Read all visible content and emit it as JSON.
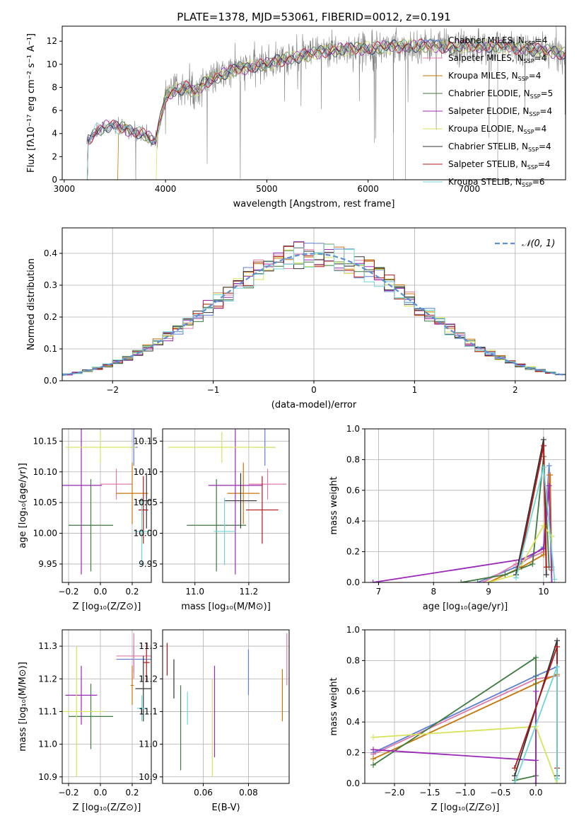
{
  "chart_data": [
    {
      "type": "line",
      "title": "PLATE=1378, MJD=53061, FIBERID=0012, z=0.191",
      "xlabel": "wavelength [Angstrom, rest frame]",
      "ylabel": "Flux [fλ10⁻¹⁷ erg cm⁻² s⁻¹ A⁻¹]",
      "xlim": [
        2980,
        7950
      ],
      "ylim": [
        0,
        13.3
      ],
      "xticks": [
        "3000",
        "4000",
        "5000",
        "6000",
        "7000"
      ],
      "yticks": [
        "0",
        "2",
        "4",
        "6",
        "8",
        "10",
        "12"
      ],
      "legend_position": "top-right",
      "series": [
        {
          "name": "Chabrier MILES, N",
          "sub": "SSP",
          "suffix": "=4",
          "color": "#5b7fd6"
        },
        {
          "name": "Salpeter MILES, N",
          "sub": "SSP",
          "suffix": "=4",
          "color": "#e07ba8"
        },
        {
          "name": "Kroupa MILES, N",
          "sub": "SSP",
          "suffix": "=4",
          "color": "#c8750a"
        },
        {
          "name": "Chabrier ELODIE, N",
          "sub": "SSP",
          "suffix": "=5",
          "color": "#3f7a3f"
        },
        {
          "name": "Salpeter ELODIE, N",
          "sub": "SSP",
          "suffix": "=4",
          "color": "#9b28b8"
        },
        {
          "name": "Kroupa ELODIE, N",
          "sub": "SSP",
          "suffix": "=4",
          "color": "#d7e35a"
        },
        {
          "name": "Chabrier STELIB, N",
          "sub": "SSP",
          "suffix": "=4",
          "color": "#333333"
        },
        {
          "name": "Salpeter STELIB, N",
          "sub": "SSP",
          "suffix": "=4",
          "color": "#b01818"
        },
        {
          "name": "Kroupa STELIB, N",
          "sub": "SSP",
          "suffix": "=6",
          "color": "#6fd6d6"
        }
      ],
      "data_color": "#808080",
      "continuum": {
        "x": [
          3220,
          3300,
          3400,
          3500,
          3600,
          3700,
          3800,
          3900,
          3950,
          4000,
          4100,
          4200,
          4300,
          4400,
          4500,
          4600,
          4700,
          4800,
          4900,
          5000,
          5200,
          5400,
          5600,
          5800,
          6000,
          6200,
          6400,
          6600,
          6800,
          7000,
          7200,
          7400,
          7600,
          7800,
          7950
        ],
        "y": [
          3.2,
          4.2,
          4.6,
          4.6,
          4.4,
          4.2,
          3.9,
          3.2,
          5.2,
          7.2,
          7.8,
          8.0,
          7.6,
          8.5,
          8.9,
          9.2,
          9.6,
          9.7,
          9.9,
          10.0,
          10.5,
          10.8,
          11.2,
          11.3,
          11.4,
          11.5,
          11.6,
          11.6,
          11.5,
          11.6,
          11.6,
          11.5,
          11.3,
          11.1,
          10.9
        ]
      }
    },
    {
      "type": "histogram",
      "xlabel": "(data-model)/error",
      "ylabel": "Normed distribution",
      "xlim": [
        -2.5,
        2.5
      ],
      "ylim": [
        0,
        0.48
      ],
      "xticks": [
        "−2",
        "−1",
        "0",
        "1",
        "2"
      ],
      "yticks": [
        "0.0",
        "0.1",
        "0.2",
        "0.3",
        "0.4"
      ],
      "legend_label": "𝒩(0, 1)",
      "legend_position": "top-right",
      "gauss_color": "#5b8fd6",
      "bin_width": 0.1
    },
    {
      "type": "scatter",
      "xlabel": "Z [log₁₀(Z/Z⊙)]",
      "ylabel": "age  [log₁₀(age/yr)]",
      "xlim": [
        -0.24,
        0.32
      ],
      "ylim": [
        9.92,
        10.17
      ],
      "xticks": [
        "−0.2",
        "0.0",
        "0.2"
      ],
      "yticks": [
        "9.95",
        "10.00",
        "10.05",
        "10.10",
        "10.15"
      ],
      "points": [
        {
          "x": 0.21,
          "y": 10.14,
          "xerr": 0.025,
          "yerr": 0.03,
          "color": "#5b7fd6"
        },
        {
          "x": 0.1,
          "y": 10.08,
          "xerr": 0.1,
          "yerr": 0.025,
          "color": "#e07ba8"
        },
        {
          "x": 0.2,
          "y": 10.065,
          "xerr": 0.1,
          "yerr": 0.05,
          "color": "#c8750a"
        },
        {
          "x": -0.06,
          "y": 10.013,
          "xerr": 0.14,
          "yerr": 0.075,
          "color": "#3f7a3f"
        },
        {
          "x": -0.12,
          "y": 10.078,
          "xerr": 0.13,
          "yerr": 0.145,
          "color": "#9b28b8"
        },
        {
          "x": 0.0,
          "y": 10.14,
          "xerr": 0.22,
          "yerr": 0.025,
          "color": "#d7e35a"
        },
        {
          "x": 0.29,
          "y": 10.053,
          "xerr": 0.05,
          "yerr": 0.045,
          "color": "#333333"
        },
        {
          "x": 0.27,
          "y": 10.038,
          "xerr": 0.03,
          "yerr": 0.055,
          "color": "#b01818"
        },
        {
          "x": 0.26,
          "y": 10.003,
          "xerr": 0.05,
          "yerr": 0.055,
          "color": "#6fd6d6"
        }
      ]
    },
    {
      "type": "scatter",
      "xlabel": "mass [log₁₀(M/M⊙)]",
      "ylabel": "",
      "xlim": [
        10.88,
        11.35
      ],
      "ylim": [
        9.92,
        10.17
      ],
      "xticks": [
        "11.0",
        "11.2"
      ],
      "yticks": [
        "9.95",
        "10.00",
        "10.05",
        "10.10",
        "10.15"
      ],
      "points": [
        {
          "x": 11.26,
          "y": 10.14,
          "xerr": 0.04,
          "yerr": 0.03,
          "color": "#5b7fd6"
        },
        {
          "x": 11.27,
          "y": 10.08,
          "xerr": 0.07,
          "yerr": 0.025,
          "color": "#e07ba8"
        },
        {
          "x": 11.18,
          "y": 10.065,
          "xerr": 0.06,
          "yerr": 0.05,
          "color": "#c8750a"
        },
        {
          "x": 11.08,
          "y": 10.013,
          "xerr": 0.11,
          "yerr": 0.075,
          "color": "#3f7a3f"
        },
        {
          "x": 11.15,
          "y": 10.078,
          "xerr": 0.1,
          "yerr": 0.145,
          "color": "#9b28b8"
        },
        {
          "x": 11.1,
          "y": 10.14,
          "xerr": 0.2,
          "yerr": 0.025,
          "color": "#d7e35a"
        },
        {
          "x": 11.17,
          "y": 10.053,
          "xerr": 0.06,
          "yerr": 0.045,
          "color": "#333333"
        },
        {
          "x": 11.25,
          "y": 10.038,
          "xerr": 0.06,
          "yerr": 0.055,
          "color": "#b01818"
        },
        {
          "x": 11.11,
          "y": 10.003,
          "xerr": 0.04,
          "yerr": 0.055,
          "color": "#6fd6d6"
        }
      ]
    },
    {
      "type": "line",
      "xlabel": "age  [log₁₀(age/yr)]",
      "ylabel": "mass weight",
      "xlim": [
        6.75,
        10.4
      ],
      "ylim": [
        0,
        1.0
      ],
      "xticks": [
        "7",
        "8",
        "9",
        "10"
      ],
      "yticks": [
        "0.0",
        "0.2",
        "0.4",
        "0.6",
        "0.8",
        "1.0"
      ],
      "series": [
        {
          "color": "#5b7fd6",
          "points": [
            [
              8.8,
              0.0
            ],
            [
              9.5,
              0.1
            ],
            [
              10.0,
              0.23
            ],
            [
              10.1,
              0.76
            ],
            [
              10.15,
              0.1
            ]
          ]
        },
        {
          "color": "#e07ba8",
          "points": [
            [
              8.9,
              0.0
            ],
            [
              9.5,
              0.12
            ],
            [
              10.0,
              0.2
            ],
            [
              10.1,
              0.7
            ],
            [
              10.15,
              0.1
            ]
          ]
        },
        {
          "color": "#c8750a",
          "points": [
            [
              9.0,
              0.0
            ],
            [
              9.6,
              0.1
            ],
            [
              10.0,
              0.18
            ],
            [
              10.12,
              0.7
            ],
            [
              10.15,
              0.08
            ]
          ]
        },
        {
          "color": "#3f7a3f",
          "points": [
            [
              8.5,
              0.0
            ],
            [
              9.3,
              0.05
            ],
            [
              9.8,
              0.12
            ],
            [
              10.0,
              0.82
            ],
            [
              10.1,
              0.1
            ]
          ]
        },
        {
          "color": "#9b28b8",
          "points": [
            [
              6.9,
              0.0
            ],
            [
              9.6,
              0.15
            ],
            [
              10.0,
              0.22
            ],
            [
              10.1,
              0.63
            ],
            [
              10.15,
              0.0
            ]
          ]
        },
        {
          "color": "#d7e35a",
          "points": [
            [
              9.0,
              0.0
            ],
            [
              9.5,
              0.05
            ],
            [
              10.0,
              0.37
            ],
            [
              10.15,
              0.3
            ]
          ]
        },
        {
          "color": "#333333",
          "points": [
            [
              9.5,
              0.05
            ],
            [
              10.0,
              0.93
            ],
            [
              10.05,
              0.05
            ]
          ]
        },
        {
          "color": "#b01818",
          "points": [
            [
              9.55,
              0.1
            ],
            [
              10.0,
              0.89
            ],
            [
              10.05,
              0.1
            ]
          ]
        },
        {
          "color": "#6fd6d6",
          "points": [
            [
              9.5,
              0.03
            ],
            [
              10.0,
              0.75
            ],
            [
              10.2,
              0.02
            ]
          ]
        }
      ]
    },
    {
      "type": "scatter",
      "xlabel": "Z [log₁₀(Z/Z⊙)]",
      "ylabel": "mass [log₁₀(M/M⊙)]",
      "xlim": [
        -0.24,
        0.32
      ],
      "ylim": [
        10.88,
        11.35
      ],
      "xticks": [
        "−0.2",
        "0.0",
        "0.2"
      ],
      "yticks": [
        "10.9",
        "11.0",
        "11.1",
        "11.2",
        "11.3"
      ],
      "points": [
        {
          "x": 0.21,
          "y": 11.26,
          "xerr": 0.11,
          "yerr": 0.04,
          "color": "#5b7fd6"
        },
        {
          "x": 0.21,
          "y": 11.27,
          "xerr": 0.11,
          "yerr": 0.07,
          "color": "#e07ba8"
        },
        {
          "x": 0.2,
          "y": 11.18,
          "xerr": 0.01,
          "yerr": 0.06,
          "color": "#c8750a"
        },
        {
          "x": -0.06,
          "y": 11.085,
          "xerr": 0.14,
          "yerr": 0.1,
          "color": "#3f7a3f"
        },
        {
          "x": -0.12,
          "y": 11.15,
          "xerr": 0.1,
          "yerr": 0.09,
          "color": "#9b28b8"
        },
        {
          "x": -0.15,
          "y": 11.1,
          "xerr": 0.17,
          "yerr": 0.2,
          "color": "#d7e35a"
        },
        {
          "x": 0.27,
          "y": 11.17,
          "xerr": 0.05,
          "yerr": 0.1,
          "color": "#333333"
        },
        {
          "x": 0.29,
          "y": 11.25,
          "xerr": 0.02,
          "yerr": 0.06,
          "color": "#b01818"
        },
        {
          "x": 0.26,
          "y": 11.11,
          "xerr": 0.03,
          "yerr": 0.04,
          "color": "#6fd6d6"
        }
      ]
    },
    {
      "type": "scatter",
      "xlabel": "E(B-V)",
      "ylabel": "",
      "xlim": [
        0.042,
        0.098
      ],
      "ylim": [
        10.88,
        11.35
      ],
      "xticks": [
        "0.06",
        "0.08"
      ],
      "yticks": [
        "10.9",
        "11.0",
        "11.1",
        "11.2",
        "11.3"
      ],
      "points": [
        {
          "x": 0.08,
          "y": 11.22,
          "yerr": 0.07,
          "color": "#5b7fd6"
        },
        {
          "x": 0.097,
          "y": 11.26,
          "yerr": 0.08,
          "color": "#e07ba8"
        },
        {
          "x": 0.095,
          "y": 11.15,
          "yerr": 0.08,
          "color": "#c8750a"
        },
        {
          "x": 0.05,
          "y": 11.05,
          "yerr": 0.13,
          "color": "#3f7a3f"
        },
        {
          "x": 0.065,
          "y": 11.1,
          "yerr": 0.14,
          "color": "#9b28b8"
        },
        {
          "x": 0.064,
          "y": 11.05,
          "yerr": 0.15,
          "color": "#d7e35a"
        },
        {
          "x": 0.047,
          "y": 11.2,
          "yerr": 0.06,
          "color": "#333333"
        },
        {
          "x": 0.044,
          "y": 11.26,
          "yerr": 0.05,
          "color": "#b01818"
        },
        {
          "x": 0.053,
          "y": 11.11,
          "yerr": 0.05,
          "color": "#6fd6d6"
        }
      ]
    },
    {
      "type": "line",
      "xlabel": "Z [log₁₀(Z/Z⊙)]",
      "ylabel": "mass weight",
      "xlim": [
        -2.42,
        0.42
      ],
      "ylim": [
        0,
        1.0
      ],
      "xticks": [
        "−2.0",
        "−1.5",
        "−1.0",
        "−0.5",
        "0.0"
      ],
      "yticks": [
        "0.0",
        "0.2",
        "0.4",
        "0.6",
        "0.8",
        "1.0"
      ],
      "series": [
        {
          "color": "#5b7fd6",
          "points": [
            [
              -2.3,
              0.2
            ],
            [
              0.0,
              0.7
            ],
            [
              0.3,
              0.76
            ]
          ]
        },
        {
          "color": "#e07ba8",
          "points": [
            [
              -2.3,
              0.19
            ],
            [
              0.0,
              0.68
            ],
            [
              0.3,
              0.7
            ]
          ]
        },
        {
          "color": "#c8750a",
          "points": [
            [
              -2.3,
              0.16
            ],
            [
              0.0,
              0.65
            ],
            [
              0.3,
              0.71
            ]
          ]
        },
        {
          "color": "#3f7a3f",
          "points": [
            [
              -2.3,
              0.12
            ],
            [
              0.0,
              0.82
            ],
            [
              0.0,
              0.05
            ],
            [
              -0.3,
              0.02
            ]
          ]
        },
        {
          "color": "#9b28b8",
          "points": [
            [
              -2.3,
              0.22
            ],
            [
              0.0,
              0.15
            ],
            [
              0.0,
              0.6
            ],
            [
              0.0,
              0.0
            ]
          ]
        },
        {
          "color": "#d7e35a",
          "points": [
            [
              -2.3,
              0.3
            ],
            [
              0.0,
              0.37
            ],
            [
              0.3,
              0.0
            ]
          ]
        },
        {
          "color": "#333333",
          "points": [
            [
              -0.3,
              0.05
            ],
            [
              0.3,
              0.93
            ],
            [
              0.3,
              0.05
            ]
          ]
        },
        {
          "color": "#b01818",
          "points": [
            [
              -0.3,
              0.1
            ],
            [
              0.3,
              0.89
            ],
            [
              0.3,
              0.1
            ]
          ]
        },
        {
          "color": "#6fd6d6",
          "points": [
            [
              -0.3,
              0.0
            ],
            [
              0.3,
              0.76
            ],
            [
              0.3,
              0.03
            ]
          ]
        }
      ]
    }
  ]
}
